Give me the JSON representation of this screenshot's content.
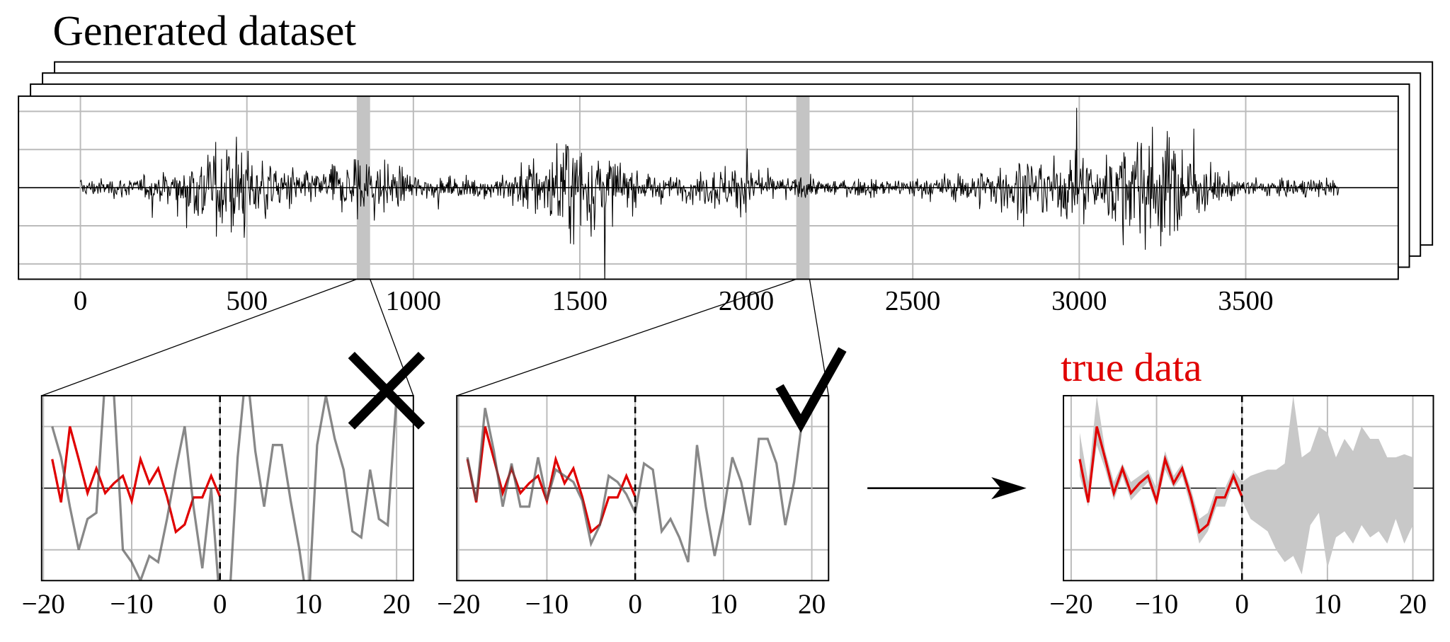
{
  "title": "Generated dataset",
  "true_label": "true data",
  "overview": {
    "xlim": [
      -186,
      3958
    ],
    "xticks": [
      0,
      500,
      1000,
      1500,
      2000,
      2500,
      3000,
      3500
    ],
    "ylim": [
      -2.4,
      2.4
    ],
    "yticks": [
      -2,
      -1,
      0,
      1,
      2
    ],
    "highlights": [
      {
        "start": 830,
        "end": 870
      },
      {
        "start": 2150,
        "end": 2190
      }
    ]
  },
  "panels": [
    {
      "xlim": [
        -20.2,
        21.9
      ],
      "ylim": [
        -1.5,
        1.5
      ],
      "xticks": [
        {
          "value": -20,
          "label": "−20"
        },
        {
          "value": -10,
          "label": "−10"
        },
        0,
        10,
        20
      ],
      "yticks": [
        -1,
        0,
        1
      ],
      "history_x": [
        -19,
        -18,
        -17,
        -16,
        -15,
        -14,
        -13,
        -12,
        -11,
        -10,
        -9,
        -8,
        -7,
        -6,
        -5,
        -4,
        -3,
        -2,
        -1,
        0
      ],
      "true_values": [
        0.47,
        -0.23,
        1.0,
        0.47,
        -0.08,
        0.32,
        -0.08,
        0.08,
        0.2,
        -0.21,
        0.47,
        0.08,
        0.32,
        -0.14,
        -0.71,
        -0.59,
        -0.15,
        -0.15,
        0.2,
        -0.14
      ],
      "forecast_x": [
        -19,
        -18,
        -17,
        -16,
        -15,
        -14,
        -13,
        -12,
        -11,
        -10,
        -9,
        -8,
        -7,
        -6,
        -5,
        -4,
        -3,
        -2,
        -1,
        0,
        1,
        2,
        3,
        4,
        5,
        6,
        7,
        8,
        9,
        10,
        11,
        12,
        13,
        14,
        15,
        16,
        17,
        18,
        19,
        20
      ],
      "sample_values": [
        1.0,
        0.5,
        -0.3,
        -1.0,
        -0.5,
        -0.4,
        1.8,
        1.5,
        -1.0,
        -1.2,
        -1.5,
        -1.1,
        -1.2,
        -0.5,
        0.3,
        1.0,
        -0.3,
        -1.3,
        0.0,
        -1.9,
        -2.0,
        0.5,
        2.0,
        0.6,
        -0.3,
        0.7,
        0.7,
        -0.2,
        -1.0,
        -2.0,
        0.7,
        1.5,
        0.8,
        0.3,
        -0.7,
        -0.8,
        0.3,
        -0.5,
        -0.6,
        1.5
      ]
    },
    {
      "xlim": [
        -20.2,
        21.9
      ],
      "ylim": [
        -1.5,
        1.5
      ],
      "xticks": [
        {
          "value": -20,
          "label": "−20"
        },
        {
          "value": -10,
          "label": "−10"
        },
        0,
        10,
        20
      ],
      "yticks": [
        -1,
        0,
        1
      ],
      "history_x": [
        -19,
        -18,
        -17,
        -16,
        -15,
        -14,
        -13,
        -12,
        -11,
        -10,
        -9,
        -8,
        -7,
        -6,
        -5,
        -4,
        -3,
        -2,
        -1,
        0
      ],
      "true_values": [
        0.47,
        -0.23,
        1.0,
        0.47,
        -0.08,
        0.32,
        -0.08,
        0.08,
        0.2,
        -0.21,
        0.47,
        0.08,
        0.32,
        -0.14,
        -0.71,
        -0.59,
        -0.15,
        -0.15,
        0.2,
        -0.14
      ],
      "forecast_x": [
        -19,
        -18,
        -17,
        -16,
        -15,
        -14,
        -13,
        -12,
        -11,
        -10,
        -9,
        -8,
        -7,
        -6,
        -5,
        -4,
        -3,
        -2,
        -1,
        0,
        1,
        2,
        3,
        4,
        5,
        6,
        7,
        8,
        9,
        10,
        11,
        12,
        13,
        14,
        15,
        16,
        17,
        18,
        19,
        20
      ],
      "sample_values": [
        0.5,
        -0.2,
        1.3,
        0.6,
        -0.3,
        0.4,
        -0.3,
        -0.3,
        0.5,
        -0.2,
        0.3,
        0.2,
        0.1,
        -0.2,
        -0.9,
        -0.6,
        0.2,
        0.1,
        -0.1,
        -0.4,
        0.4,
        0.3,
        -0.7,
        -0.5,
        -0.8,
        -1.2,
        0.7,
        -0.3,
        -1.1,
        -0.4,
        0.5,
        0.1,
        -0.6,
        0.8,
        0.8,
        0.4,
        -0.6,
        0.1,
        1.2,
        1.5
      ]
    },
    {
      "xlim": [
        -20.9,
        22.4
      ],
      "ylim": [
        -1.5,
        1.5
      ],
      "xticks": [
        {
          "value": -20,
          "label": "−20"
        },
        {
          "value": -10,
          "label": "−10"
        },
        0,
        10,
        20
      ],
      "yticks": [
        -1,
        0,
        1
      ],
      "history_x": [
        -19,
        -18,
        -17,
        -16,
        -15,
        -14,
        -13,
        -12,
        -11,
        -10,
        -9,
        -8,
        -7,
        -6,
        -5,
        -4,
        -3,
        -2,
        -1,
        0
      ],
      "true_values": [
        0.47,
        -0.23,
        1.0,
        0.47,
        -0.08,
        0.32,
        -0.08,
        0.08,
        0.2,
        -0.21,
        0.47,
        0.08,
        0.32,
        -0.14,
        -0.71,
        -0.59,
        -0.15,
        -0.15,
        0.2,
        -0.14
      ],
      "forecast_x": [
        -19,
        -18,
        -17,
        -16,
        -15,
        -14,
        -13,
        -12,
        -11,
        -10,
        -9,
        -8,
        -7,
        -6,
        -5,
        -4,
        -3,
        -2,
        -1,
        0,
        1,
        2,
        3,
        4,
        5,
        6,
        7,
        8,
        9,
        10,
        11,
        12,
        13,
        14,
        15,
        16,
        17,
        18,
        19,
        20
      ],
      "band_upper": [
        0.9,
        0.1,
        1.5,
        0.6,
        0.1,
        0.4,
        0.1,
        0.2,
        0.3,
        0.0,
        0.6,
        0.2,
        0.4,
        0.0,
        -0.5,
        -0.4,
        0.0,
        0.0,
        0.3,
        0.1,
        0.2,
        0.25,
        0.3,
        0.3,
        0.4,
        1.5,
        0.5,
        0.6,
        1.0,
        0.9,
        0.5,
        0.8,
        0.6,
        1.0,
        0.8,
        0.8,
        0.5,
        0.5,
        0.55,
        0.5
      ],
      "band_lower": [
        0.2,
        -0.3,
        0.7,
        0.3,
        -0.2,
        0.2,
        -0.2,
        -0.05,
        0.1,
        -0.3,
        0.3,
        0.0,
        0.2,
        -0.3,
        -0.9,
        -0.7,
        -0.3,
        -0.3,
        0.1,
        -0.2,
        -0.5,
        -0.6,
        -0.7,
        -1.0,
        -1.2,
        -1.1,
        -1.4,
        -0.6,
        -0.4,
        -1.3,
        -0.8,
        -0.7,
        -0.9,
        -0.6,
        -0.8,
        -0.7,
        -0.9,
        -0.5,
        -0.9,
        -0.6
      ]
    }
  ]
}
